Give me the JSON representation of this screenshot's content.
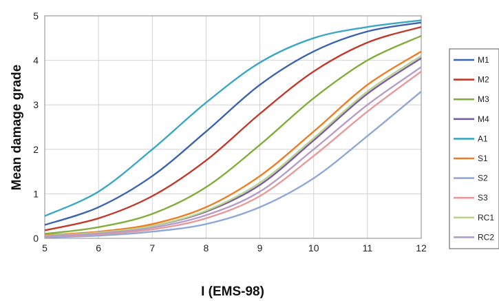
{
  "chart_data": {
    "type": "line",
    "xlabel": "I (EMS-98)",
    "ylabel": "Mean damage grade",
    "xlim": [
      5,
      12
    ],
    "ylim": [
      0,
      5
    ],
    "xticks": [
      "5",
      "6",
      "7",
      "8",
      "9",
      "10",
      "11",
      "12"
    ],
    "yticks": [
      "0",
      "1",
      "2",
      "3",
      "4",
      "5"
    ],
    "grid": true,
    "legend_position": "right",
    "x": [
      5,
      6,
      7,
      8,
      9,
      10,
      11,
      12
    ],
    "series": [
      {
        "name": "M1",
        "color": "#3b63b0",
        "values": [
          0.3,
          0.7,
          1.4,
          2.4,
          3.45,
          4.2,
          4.65,
          4.85
        ]
      },
      {
        "name": "M2",
        "color": "#c0392b",
        "values": [
          0.18,
          0.45,
          0.95,
          1.75,
          2.8,
          3.75,
          4.4,
          4.75
        ]
      },
      {
        "name": "M3",
        "color": "#7fae3a",
        "values": [
          0.1,
          0.25,
          0.55,
          1.15,
          2.1,
          3.15,
          4.0,
          4.55
        ]
      },
      {
        "name": "M4",
        "color": "#7a5aa6",
        "values": [
          0.06,
          0.13,
          0.28,
          0.6,
          1.2,
          2.2,
          3.25,
          4.05
        ]
      },
      {
        "name": "A1",
        "color": "#3aa7c4",
        "values": [
          0.5,
          1.05,
          2.0,
          3.05,
          3.95,
          4.5,
          4.75,
          4.9
        ]
      },
      {
        "name": "S1",
        "color": "#ee7d22",
        "values": [
          0.07,
          0.15,
          0.32,
          0.7,
          1.4,
          2.4,
          3.45,
          4.2
        ]
      },
      {
        "name": "S2",
        "color": "#8fa8d8",
        "values": [
          0.02,
          0.06,
          0.15,
          0.32,
          0.7,
          1.35,
          2.3,
          3.3
        ]
      },
      {
        "name": "S3",
        "color": "#e79a9a",
        "values": [
          0.04,
          0.09,
          0.2,
          0.45,
          0.95,
          1.85,
          2.85,
          3.75
        ]
      },
      {
        "name": "RC1",
        "color": "#b9d48c",
        "values": [
          0.06,
          0.13,
          0.28,
          0.62,
          1.25,
          2.25,
          3.3,
          4.1
        ]
      },
      {
        "name": "RC2",
        "color": "#b59cc9",
        "values": [
          0.05,
          0.11,
          0.24,
          0.52,
          1.05,
          2.0,
          3.0,
          3.85
        ]
      }
    ]
  }
}
